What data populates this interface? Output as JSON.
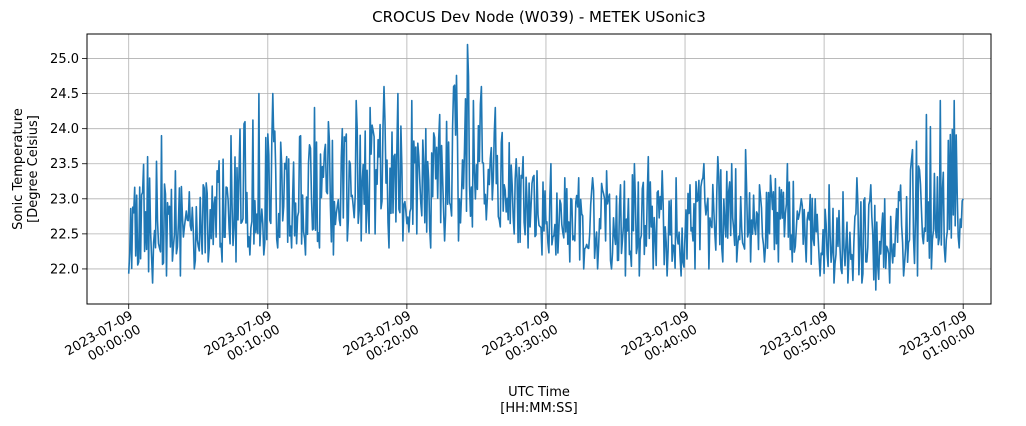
{
  "chart_data": {
    "type": "line",
    "title": "CROCUS Dev Node (W039) - METEK USonic3",
    "xlabel": [
      "UTC Time",
      "[HH:MM:SS]"
    ],
    "ylabel": [
      "Sonic Temperature",
      "[Degree Celsius]"
    ],
    "xlim": [
      "2023-07-08T23:57:00",
      "2023-07-09T01:02:00"
    ],
    "ylim": [
      21.5,
      25.35
    ],
    "grid": true,
    "x_ticks": [
      {
        "value": "2023-07-09T00:00:00",
        "label": [
          "2023-07-09",
          "00:00:00"
        ]
      },
      {
        "value": "2023-07-09T00:10:00",
        "label": [
          "2023-07-09",
          "00:10:00"
        ]
      },
      {
        "value": "2023-07-09T00:20:00",
        "label": [
          "2023-07-09",
          "00:20:00"
        ]
      },
      {
        "value": "2023-07-09T00:30:00",
        "label": [
          "2023-07-09",
          "00:30:00"
        ]
      },
      {
        "value": "2023-07-09T00:40:00",
        "label": [
          "2023-07-09",
          "00:40:00"
        ]
      },
      {
        "value": "2023-07-09T00:50:00",
        "label": [
          "2023-07-09",
          "00:50:00"
        ]
      },
      {
        "value": "2023-07-09T01:00:00",
        "label": [
          "2023-07-09",
          "01:00:00"
        ]
      }
    ],
    "y_ticks": [
      22.0,
      22.5,
      23.0,
      23.5,
      24.0,
      24.5,
      25.0
    ],
    "y_tick_labels": [
      "22.0",
      "22.5",
      "23.0",
      "23.5",
      "24.0",
      "24.5",
      "25.0"
    ],
    "series": [
      {
        "color": "#1f77b4",
        "x": [
          "2023-07-09T00:00:00",
          "2023-07-09T00:01:00",
          "2023-07-09T00:02:00",
          "2023-07-09T00:03:00",
          "2023-07-09T00:04:00",
          "2023-07-09T00:05:00",
          "2023-07-09T00:06:00",
          "2023-07-09T00:07:00",
          "2023-07-09T00:08:00",
          "2023-07-09T00:09:00",
          "2023-07-09T00:10:00",
          "2023-07-09T00:11:00",
          "2023-07-09T00:12:00",
          "2023-07-09T00:13:00",
          "2023-07-09T00:14:00",
          "2023-07-09T00:15:00",
          "2023-07-09T00:16:00",
          "2023-07-09T00:17:00",
          "2023-07-09T00:18:00",
          "2023-07-09T00:19:00",
          "2023-07-09T00:20:00",
          "2023-07-09T00:21:00",
          "2023-07-09T00:22:00",
          "2023-07-09T00:23:00",
          "2023-07-09T00:24:00",
          "2023-07-09T00:25:00",
          "2023-07-09T00:26:00",
          "2023-07-09T00:27:00",
          "2023-07-09T00:28:00",
          "2023-07-09T00:29:00",
          "2023-07-09T00:30:00",
          "2023-07-09T00:31:00",
          "2023-07-09T00:32:00",
          "2023-07-09T00:33:00",
          "2023-07-09T00:34:00",
          "2023-07-09T00:35:00",
          "2023-07-09T00:36:00",
          "2023-07-09T00:37:00",
          "2023-07-09T00:38:00",
          "2023-07-09T00:39:00",
          "2023-07-09T00:40:00",
          "2023-07-09T00:41:00",
          "2023-07-09T00:42:00",
          "2023-07-09T00:43:00",
          "2023-07-09T00:44:00",
          "2023-07-09T00:45:00",
          "2023-07-09T00:46:00",
          "2023-07-09T00:47:00",
          "2023-07-09T00:48:00",
          "2023-07-09T00:49:00",
          "2023-07-09T00:50:00",
          "2023-07-09T00:51:00",
          "2023-07-09T00:52:00",
          "2023-07-09T00:53:00",
          "2023-07-09T00:54:00",
          "2023-07-09T00:55:00",
          "2023-07-09T00:56:00",
          "2023-07-09T00:57:00",
          "2023-07-09T00:58:00",
          "2023-07-09T00:59:00",
          "2023-07-09T01:00:00"
        ],
        "mean": [
          22.3,
          22.4,
          22.5,
          22.5,
          22.6,
          22.5,
          22.6,
          22.5,
          22.7,
          22.8,
          22.9,
          22.8,
          22.8,
          22.9,
          22.9,
          23.0,
          23.1,
          23.0,
          23.0,
          22.9,
          23.0,
          22.9,
          23.0,
          23.1,
          23.2,
          23.4,
          23.3,
          23.2,
          23.0,
          22.9,
          22.7,
          22.6,
          22.6,
          22.5,
          22.6,
          22.6,
          22.5,
          22.5,
          22.5,
          22.4,
          22.5,
          22.6,
          22.7,
          22.7,
          22.8,
          22.7,
          22.7,
          22.8,
          22.7,
          22.6,
          22.4,
          22.3,
          22.3,
          22.3,
          22.4,
          22.4,
          22.5,
          22.6,
          22.7,
          22.9,
          23.0
        ],
        "min": [
          22.1,
          21.8,
          21.9,
          21.9,
          22.0,
          22.1,
          22.1,
          22.1,
          22.2,
          22.2,
          22.3,
          22.3,
          22.2,
          22.3,
          22.2,
          22.4,
          22.4,
          22.5,
          22.3,
          22.4,
          22.5,
          22.3,
          22.4,
          22.4,
          22.6,
          22.7,
          22.6,
          22.5,
          22.3,
          22.2,
          22.2,
          22.1,
          22.0,
          22.0,
          22.0,
          21.9,
          21.9,
          22.0,
          21.9,
          21.9,
          22.0,
          22.0,
          22.1,
          22.1,
          22.1,
          22.1,
          22.1,
          22.1,
          22.1,
          21.9,
          21.8,
          21.8,
          21.8,
          21.7,
          21.8,
          21.9,
          21.9,
          22.0,
          22.1,
          22.3,
          22.5
        ],
        "max": [
          22.8,
          23.6,
          23.9,
          23.4,
          23.1,
          23.2,
          23.4,
          23.9,
          24.1,
          24.5,
          24.5,
          23.6,
          23.9,
          24.3,
          24.1,
          24.0,
          24.4,
          24.3,
          24.6,
          24.5,
          24.4,
          24.0,
          24.2,
          24.6,
          25.2,
          24.6,
          24.3,
          23.8,
          23.6,
          23.4,
          23.5,
          23.3,
          23.3,
          23.3,
          23.4,
          23.2,
          23.5,
          23.6,
          23.4,
          23.3,
          23.2,
          23.5,
          23.6,
          23.5,
          23.7,
          23.2,
          23.1,
          23.5,
          23.0,
          23.0,
          23.2,
          23.1,
          23.3,
          23.2,
          23.0,
          23.1,
          23.7,
          24.2,
          24.4,
          24.4,
          23.6
        ]
      }
    ]
  }
}
